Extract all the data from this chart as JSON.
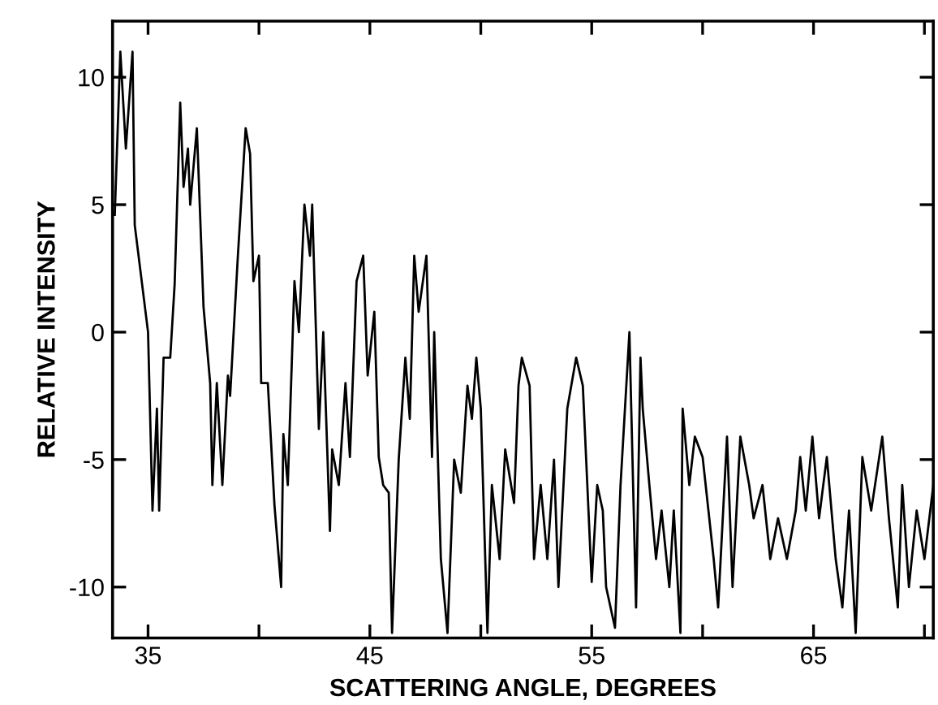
{
  "chart_data": {
    "type": "line",
    "xlabel": "SCATTERING ANGLE, DEGREES",
    "ylabel": "RELATIVE INTENSITY",
    "xlim": [
      33.4,
      70.4
    ],
    "ylim": [
      -12,
      12.2
    ],
    "xticks": [
      35,
      {
        "value": 40,
        "label": null
      },
      45,
      {
        "value": 50,
        "label": null
      },
      55,
      {
        "value": 60,
        "label": null
      },
      65,
      {
        "value": 70,
        "label": null
      }
    ],
    "yticks": [
      -10,
      -5,
      0,
      5,
      10
    ],
    "grid": false,
    "legend": false,
    "marker": "none",
    "line_style": "solid",
    "series": [
      {
        "color": "#000000",
        "x": [
          33.5,
          33.75,
          34.0,
          34.3,
          34.4,
          35.0,
          35.2,
          35.4,
          35.5,
          35.7,
          36.0,
          36.2,
          36.45,
          36.6,
          36.8,
          36.9,
          37.2,
          37.3,
          37.5,
          37.8,
          37.9,
          38.1,
          38.35,
          38.6,
          38.7,
          39.05,
          39.4,
          39.6,
          39.75,
          40.0,
          40.1,
          40.4,
          40.7,
          41.0,
          41.1,
          41.3,
          41.6,
          41.8,
          42.05,
          42.3,
          42.4,
          42.7,
          42.9,
          43.2,
          43.3,
          43.6,
          43.9,
          44.1,
          44.4,
          44.7,
          44.9,
          45.2,
          45.4,
          45.6,
          45.85,
          46.0,
          46.3,
          46.6,
          46.8,
          47.0,
          47.2,
          47.55,
          47.8,
          47.9,
          48.2,
          48.5,
          48.8,
          49.1,
          49.4,
          49.6,
          49.8,
          50.0,
          50.3,
          50.5,
          50.85,
          51.1,
          51.5,
          51.7,
          51.85,
          52.2,
          52.4,
          52.7,
          53.0,
          53.3,
          53.5,
          53.9,
          54.3,
          54.6,
          55.0,
          55.25,
          55.5,
          55.65,
          56.05,
          56.3,
          56.7,
          57.0,
          57.2,
          57.3,
          57.6,
          57.9,
          58.15,
          58.5,
          58.7,
          59.0,
          59.1,
          59.4,
          59.65,
          60.0,
          60.5,
          60.7,
          61.1,
          61.35,
          61.7,
          62.1,
          62.3,
          62.7,
          63.05,
          63.4,
          63.8,
          64.2,
          64.4,
          64.65,
          64.95,
          65.25,
          65.6,
          66.0,
          66.3,
          66.6,
          66.9,
          67.2,
          67.6,
          68.1,
          68.4,
          68.8,
          69.0,
          69.3,
          69.65,
          70.0,
          70.4
        ],
        "values": [
          4.6,
          11,
          7.2,
          11,
          4.2,
          0,
          -7,
          -3,
          -7,
          -1,
          -1,
          1.9,
          9,
          5.7,
          7.2,
          5,
          8,
          5.7,
          1,
          -2,
          -6,
          -2,
          -6,
          -1.7,
          -2.5,
          3,
          8,
          7,
          2,
          3,
          -2,
          -2,
          -6.8,
          -10,
          -4,
          -6,
          2,
          0,
          5,
          3,
          5,
          -3.8,
          0,
          -7.8,
          -4.6,
          -6,
          -2,
          -4.9,
          2,
          3,
          -1.7,
          0.8,
          -4.9,
          -6,
          -6.3,
          -11.8,
          -5,
          -1,
          -3.4,
          3,
          0.8,
          3,
          -4.9,
          0,
          -8.9,
          -11.8,
          -5,
          -6.3,
          -2.1,
          -3.4,
          -1,
          -3,
          -11.8,
          -6,
          -8.9,
          -4.6,
          -6.7,
          -2.1,
          -1,
          -2.1,
          -8.9,
          -6,
          -8.9,
          -5,
          -10,
          -3,
          -1,
          -2.1,
          -9.8,
          -6,
          -7,
          -10,
          -11.6,
          -6,
          0,
          -10.8,
          -1,
          -3,
          -6,
          -8.9,
          -7,
          -10,
          -7,
          -11.8,
          -3,
          -6,
          -4.1,
          -4.9,
          -8.9,
          -10.8,
          -4.1,
          -10,
          -4.1,
          -6,
          -7.3,
          -6,
          -8.9,
          -7.3,
          -8.9,
          -7,
          -4.9,
          -7,
          -4.1,
          -7.3,
          -4.9,
          -8.9,
          -10.8,
          -7,
          -11.8,
          -4.9,
          -7,
          -4.1,
          -7.3,
          -10.8,
          -6,
          -10,
          -7,
          -8.9,
          -6
        ]
      }
    ]
  }
}
